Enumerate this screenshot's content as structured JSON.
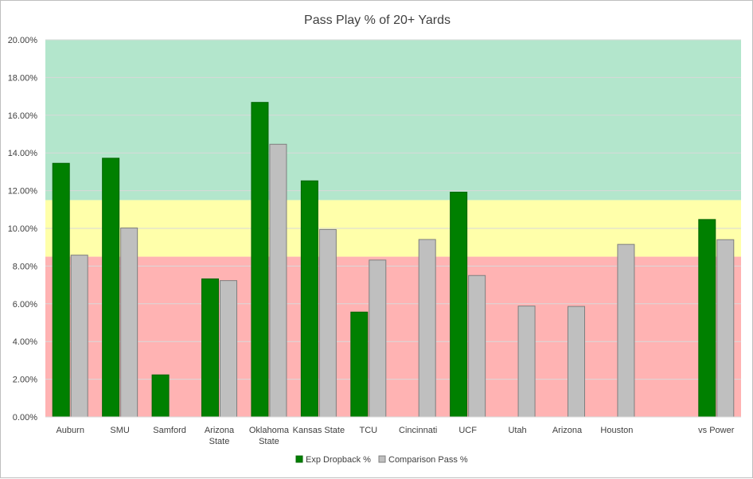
{
  "chart_data": {
    "type": "bar",
    "title": "Pass Play % of 20+ Yards",
    "xlabel": "",
    "ylabel": "",
    "ylim": [
      0,
      0.2
    ],
    "yticks": [
      "0.00%",
      "2.00%",
      "4.00%",
      "6.00%",
      "8.00%",
      "10.00%",
      "12.00%",
      "14.00%",
      "16.00%",
      "18.00%",
      "20.00%"
    ],
    "categories": [
      [
        "Auburn"
      ],
      [
        "SMU"
      ],
      [
        "Samford"
      ],
      [
        "Arizona",
        "State"
      ],
      [
        "Oklahoma",
        "State"
      ],
      [
        "Kansas State"
      ],
      [
        "TCU"
      ],
      [
        "Cincinnati"
      ],
      [
        "UCF"
      ],
      [
        "Utah"
      ],
      [
        "Arizona"
      ],
      [
        "Houston"
      ],
      [
        ""
      ],
      [
        "vs Power"
      ]
    ],
    "series": [
      {
        "name": "Exp Dropback %",
        "color": "#008000",
        "values": [
          0.1345,
          0.1372,
          0.0223,
          0.0732,
          0.1668,
          0.1252,
          0.0556,
          null,
          0.1192,
          null,
          null,
          null,
          null,
          0.1047
        ]
      },
      {
        "name": "Comparison Pass %",
        "color": "#bfbfbf",
        "values": [
          0.0858,
          0.1002,
          null,
          0.0723,
          0.1446,
          0.0994,
          0.0832,
          0.0941,
          0.075,
          0.0588,
          0.0586,
          0.0915,
          null,
          0.094
        ]
      }
    ],
    "bands": [
      {
        "from": 0.0,
        "to": 0.085,
        "color": "#ffb3b3"
      },
      {
        "from": 0.085,
        "to": 0.115,
        "color": "#ffffaa"
      },
      {
        "from": 0.115,
        "to": 0.2,
        "color": "#b3e6cc"
      }
    ],
    "grid": true,
    "legend_position": "bottom"
  }
}
